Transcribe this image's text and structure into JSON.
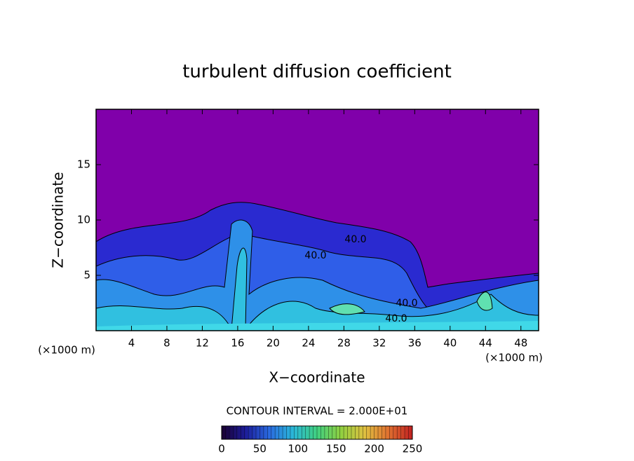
{
  "chart_data": {
    "type": "contour",
    "title": "turbulent diffusion coefficient",
    "x_label": "X−coordinate",
    "y_label": "Z−coordinate",
    "x_unit": "(×1000 m)",
    "y_unit": "(×1000 m)",
    "xlim": [
      0,
      50
    ],
    "xticks": [
      4,
      8,
      12,
      16,
      20,
      24,
      28,
      32,
      36,
      40,
      44,
      48
    ],
    "ylim": [
      0,
      20
    ],
    "yticks": [
      5,
      10,
      15
    ],
    "contour_interval_label": "CONTOUR INTERVAL = 2.000E+01",
    "contour_labels": [
      "40.0",
      "40.0",
      "40.0",
      "40.0"
    ],
    "clim": [
      0,
      250
    ],
    "cticks": [
      0,
      50,
      100,
      150,
      200,
      250
    ],
    "colormap": [
      "#1a0030",
      "#1c1c9a",
      "#2a6ae0",
      "#2ab8d8",
      "#40d080",
      "#90d040",
      "#e0c040",
      "#e07030",
      "#c02020"
    ],
    "background_color": "#8000aa"
  }
}
